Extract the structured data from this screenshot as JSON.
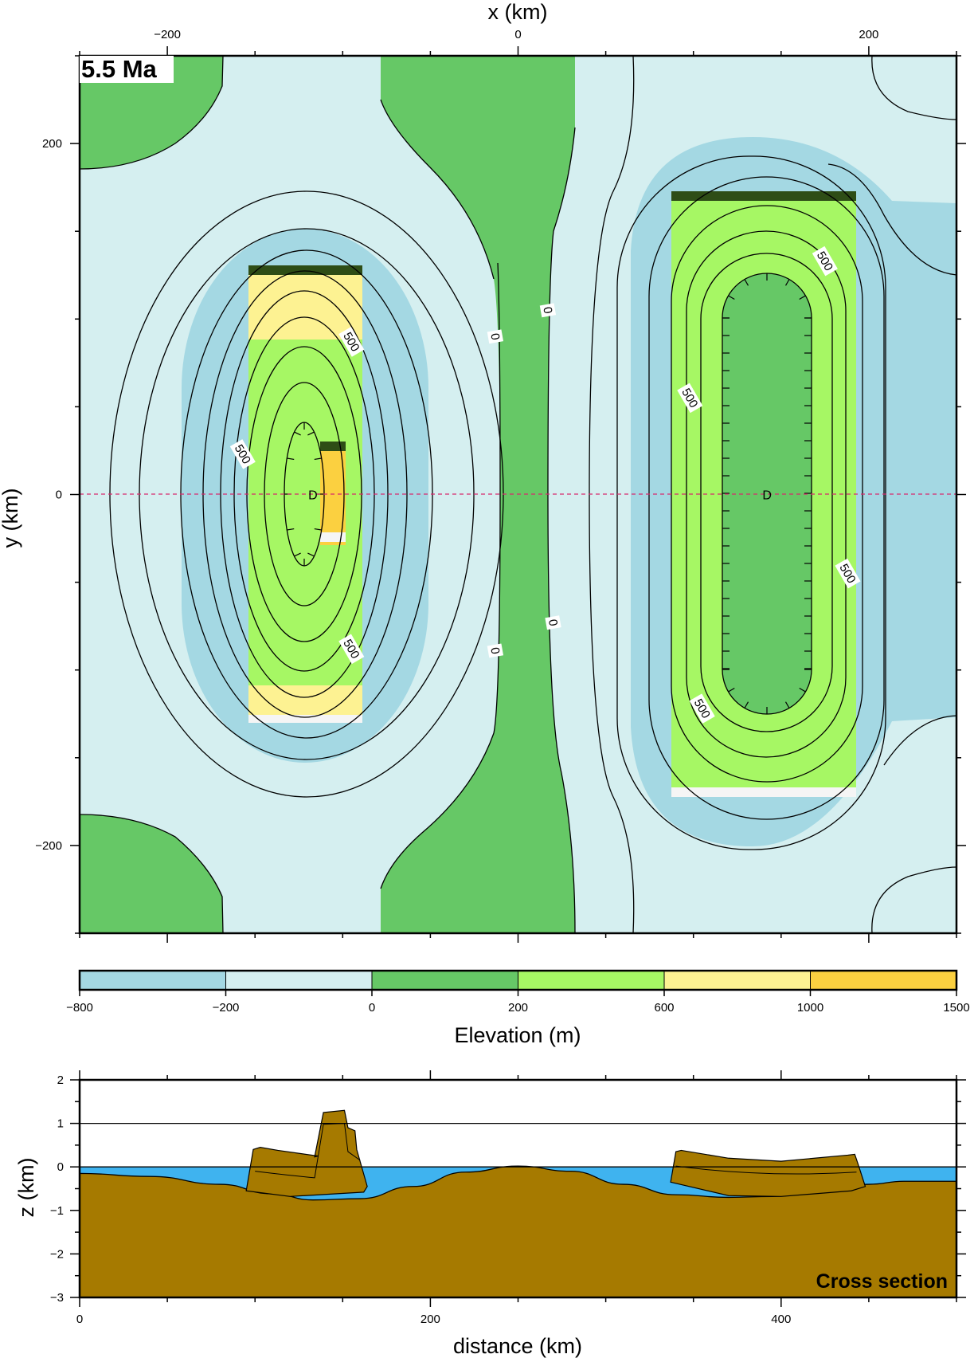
{
  "chart_data": [
    {
      "type": "heatmap",
      "title": "5.5 Ma",
      "xlabel": "x (km)",
      "ylabel": "y (km)",
      "xlim": [
        -250,
        250
      ],
      "ylim": [
        -250,
        250
      ],
      "x_ticks": [
        -200,
        0,
        200
      ],
      "y_ticks": [
        200,
        0,
        -200
      ],
      "grid": false,
      "contour_interval_m": 250,
      "contour_labels": [
        {
          "text": "0",
          "x": -13,
          "y": 90
        },
        {
          "text": "0",
          "x": 17,
          "y": 105
        },
        {
          "text": "0",
          "x": -13,
          "y": -89
        },
        {
          "text": "0",
          "x": 20,
          "y": -73
        },
        {
          "text": "500",
          "x": -95,
          "y": 87
        },
        {
          "text": "500",
          "x": -157,
          "y": 23
        },
        {
          "text": "500",
          "x": -95,
          "y": -88
        },
        {
          "text": "500",
          "x": 175,
          "y": 133
        },
        {
          "text": "500",
          "x": 98,
          "y": 55
        },
        {
          "text": "500",
          "x": 188,
          "y": -45
        },
        {
          "text": "500",
          "x": 105,
          "y": -122
        }
      ],
      "depressions": [
        {
          "label": "D",
          "x": -117,
          "y": 0
        },
        {
          "label": "D",
          "x": 142,
          "y": 0
        }
      ],
      "profile_line_y": 0,
      "colorbar": {
        "label": "Elevation (m)",
        "bounds": [
          -800,
          -200,
          0,
          200,
          600,
          1000,
          1500
        ],
        "colors": [
          "#a4d8e3",
          "#d5eff0",
          "#66c866",
          "#a6f764",
          "#fdf292",
          "#fbd040"
        ]
      }
    },
    {
      "type": "area",
      "title": "Cross section",
      "xlabel": "distance (km)",
      "ylabel": "z (km)",
      "xlim": [
        0,
        500
      ],
      "ylim": [
        -3,
        2
      ],
      "x_ticks": [
        0,
        200,
        400
      ],
      "y_ticks": [
        2,
        1,
        0,
        -1,
        -2,
        -3
      ],
      "reference_lines_z": [
        0,
        1
      ],
      "colors": {
        "water": "#3fb3ef",
        "rock": "#a67a00"
      },
      "basement_surface": {
        "distance": [
          0,
          40,
          80,
          110,
          133,
          160,
          190,
          220,
          250,
          280,
          310,
          340,
          370,
          395,
          420,
          450,
          470,
          500
        ],
        "z": [
          -0.15,
          -0.22,
          -0.4,
          -0.62,
          -0.76,
          -0.73,
          -0.45,
          -0.12,
          0.02,
          -0.1,
          -0.4,
          -0.64,
          -0.7,
          -0.68,
          -0.6,
          -0.4,
          -0.33,
          -0.33
        ]
      },
      "basins": [
        {
          "distance": [
            95,
            99,
            103,
            113,
            136,
            134,
            139,
            151,
            153,
            157,
            158,
            164,
            162,
            120,
            95
          ],
          "z": [
            -0.55,
            0.4,
            0.45,
            0.38,
            0.25,
            0.23,
            1.25,
            1.3,
            0.9,
            0.83,
            0.4,
            -0.45,
            -0.58,
            -0.68,
            -0.55
          ]
        },
        {
          "distance": [
            337,
            340,
            343,
            370,
            400,
            438,
            442,
            444,
            448,
            440,
            400,
            370,
            337
          ],
          "z": [
            -0.35,
            0.35,
            0.38,
            0.2,
            0.13,
            0.27,
            0.29,
            0.05,
            -0.45,
            -0.55,
            -0.68,
            -0.66,
            -0.35
          ]
        }
      ]
    }
  ]
}
